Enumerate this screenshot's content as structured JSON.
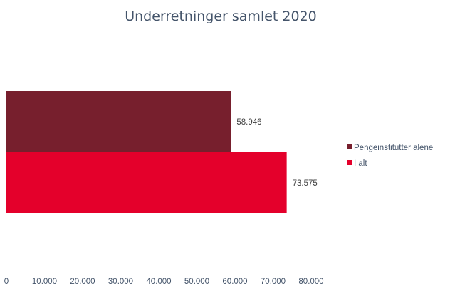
{
  "chart_data": {
    "type": "bar",
    "orientation": "horizontal",
    "title": "Underretninger samlet 2020",
    "xlabel": "",
    "ylabel": "",
    "xlim": [
      0,
      80000
    ],
    "tick_values": [
      0,
      10000,
      20000,
      30000,
      40000,
      50000,
      60000,
      70000,
      80000
    ],
    "tick_labels": [
      "0",
      "10.000",
      "20.000",
      "30.000",
      "40.000",
      "50.000",
      "60.000",
      "70.000",
      "80.000"
    ],
    "grid": false,
    "legend_position": "right",
    "categories": [
      ""
    ],
    "series": [
      {
        "name": "Pengeinstitutter alene",
        "values": [
          58946
        ],
        "label": "58.946",
        "color": "#771f2d"
      },
      {
        "name": "I alt",
        "values": [
          73575
        ],
        "label": "73.575",
        "color": "#e4002b"
      }
    ]
  }
}
